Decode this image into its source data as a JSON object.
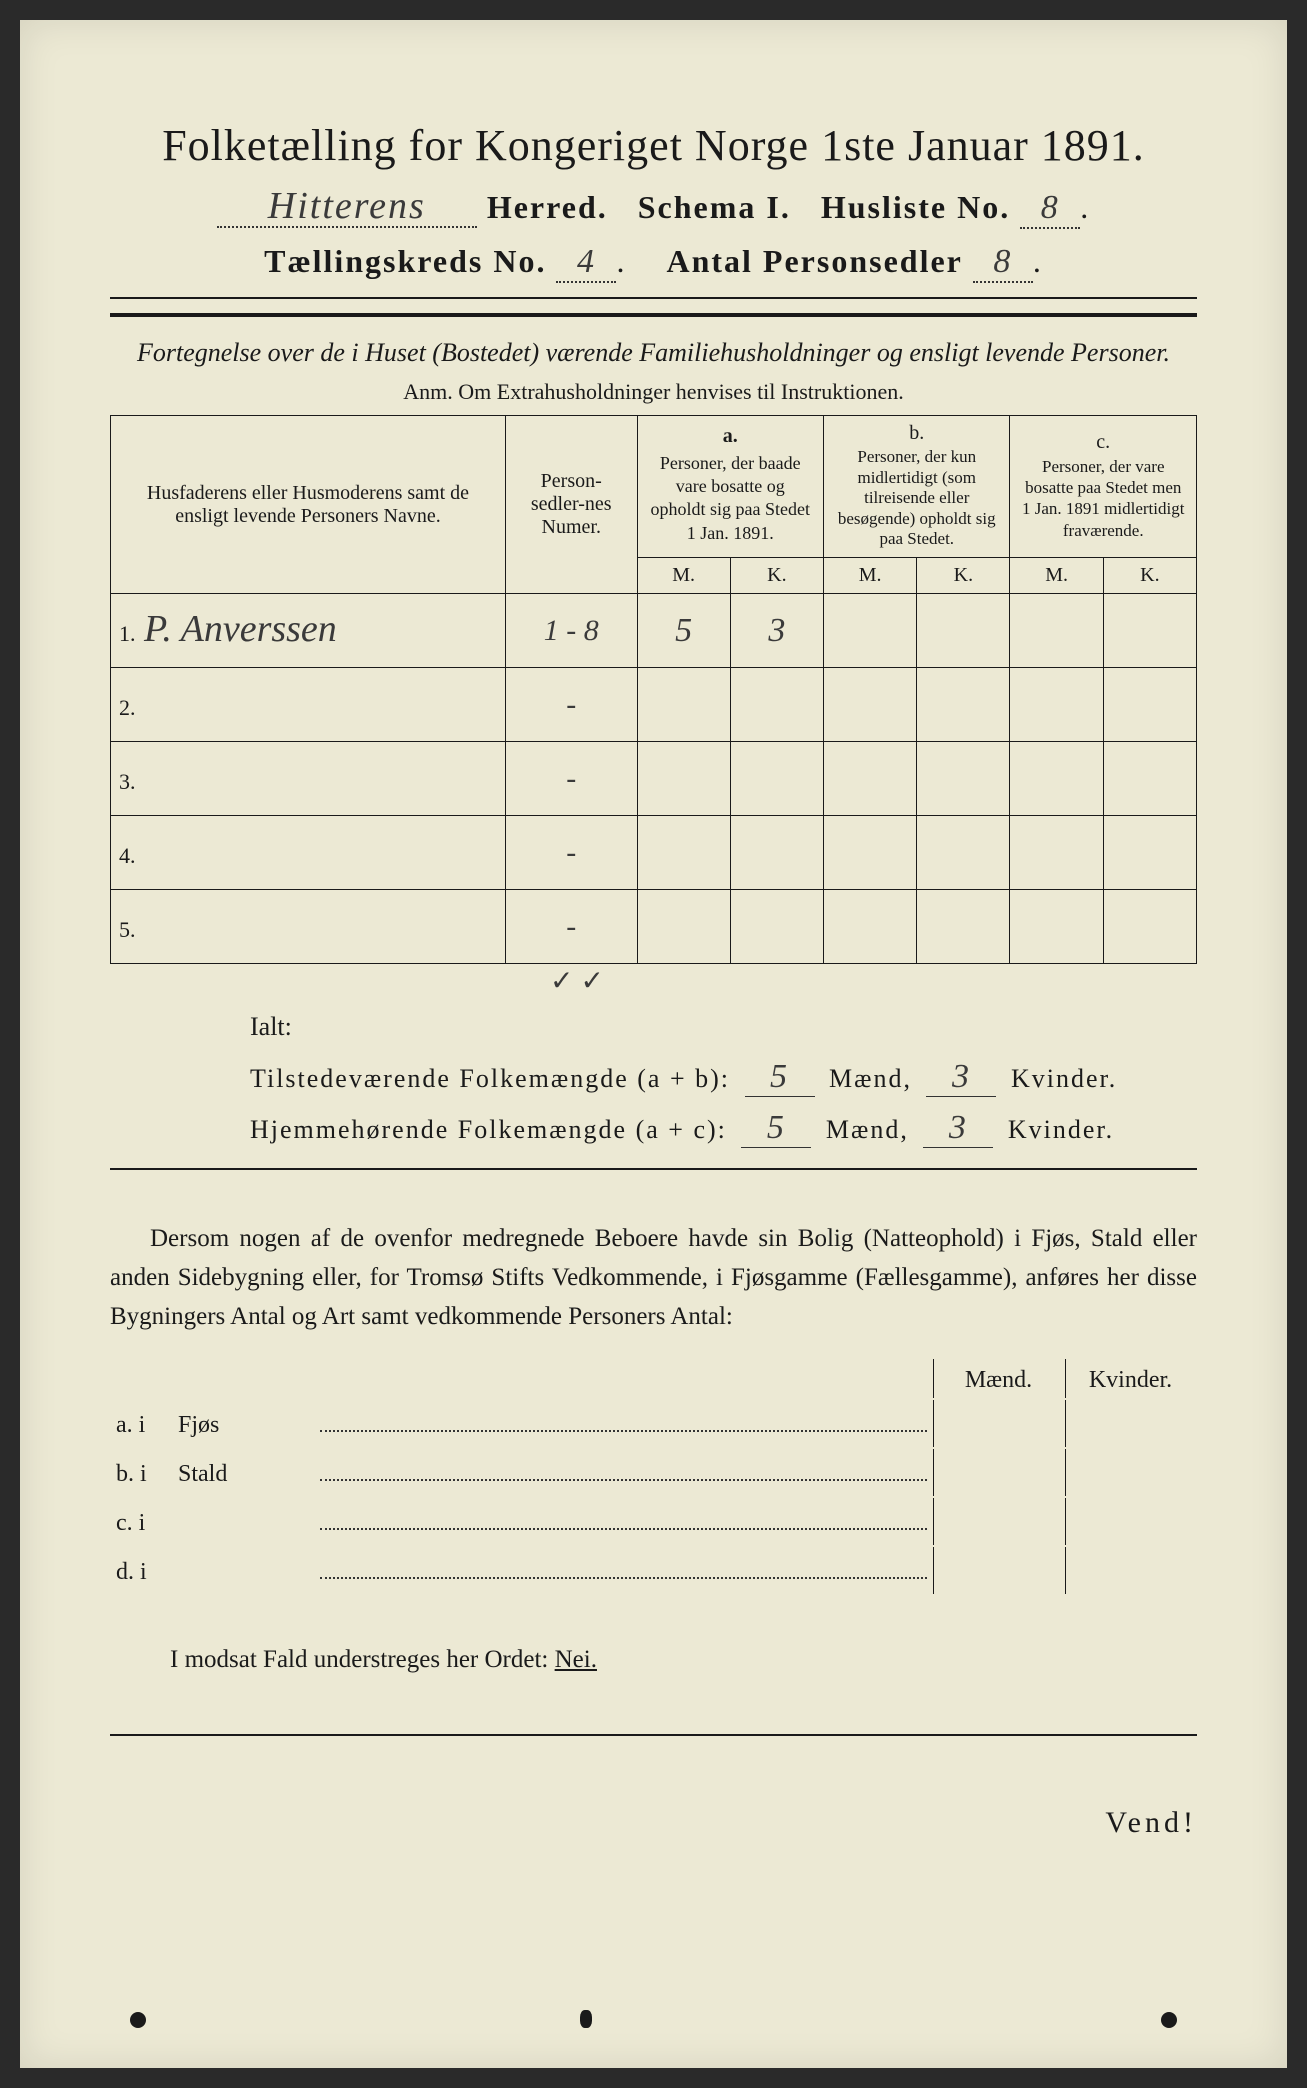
{
  "header": {
    "title": "Folketælling for Kongeriget Norge 1ste Januar 1891.",
    "herred_handwritten": "Hitterens",
    "herred_label": "Herred.",
    "schema_label": "Schema I.",
    "husliste_label": "Husliste No.",
    "husliste_no": "8",
    "kreds_label": "Tællingskreds No.",
    "kreds_no": "4",
    "antal_label": "Antal Personsedler",
    "antal_no": "8"
  },
  "intro": {
    "line1": "Fortegnelse over de i Huset (Bostedet) værende Familiehusholdninger og ensligt levende Personer.",
    "anm": "Anm. Om Extrahusholdninger henvises til Instruktionen."
  },
  "table": {
    "col_name": "Husfaderens eller Husmoderens samt de ensligt levende Personers Navne.",
    "col_num": "Person-sedler-nes Numer.",
    "col_a_head": "a.",
    "col_a": "Personer, der baade vare bosatte og opholdt sig paa Stedet 1 Jan. 1891.",
    "col_b_head": "b.",
    "col_b": "Personer, der kun midlertidigt (som tilreisende eller besøgende) opholdt sig paa Stedet.",
    "col_c_head": "c.",
    "col_c": "Personer, der vare bosatte paa Stedet men 1 Jan. 1891 midlertidigt fraværende.",
    "mk_m": "M.",
    "mk_k": "K.",
    "rows": [
      {
        "n": "1.",
        "name": "P. Anverssen",
        "num": "1 - 8",
        "am": "5",
        "ak": "3",
        "bm": "",
        "bk": "",
        "cm": "",
        "ck": ""
      },
      {
        "n": "2.",
        "name": "",
        "num": "-",
        "am": "",
        "ak": "",
        "bm": "",
        "bk": "",
        "cm": "",
        "ck": ""
      },
      {
        "n": "3.",
        "name": "",
        "num": "-",
        "am": "",
        "ak": "",
        "bm": "",
        "bk": "",
        "cm": "",
        "ck": ""
      },
      {
        "n": "4.",
        "name": "",
        "num": "-",
        "am": "",
        "ak": "",
        "bm": "",
        "bk": "",
        "cm": "",
        "ck": ""
      },
      {
        "n": "5.",
        "name": "",
        "num": "-",
        "am": "",
        "ak": "",
        "bm": "",
        "bk": "",
        "cm": "",
        "ck": ""
      }
    ],
    "checks": "✓   ✓"
  },
  "ialt": {
    "title": "Ialt:",
    "line1_a": "Tilstedeværende Folkemængde (a + b):",
    "line2_a": "Hjemmehørende Folkemængde (a + c):",
    "maend": "Mænd,",
    "kvinder": "Kvinder.",
    "v1m": "5",
    "v1k": "3",
    "v2m": "5",
    "v2k": "3"
  },
  "para": "Dersom nogen af de ovenfor medregnede Beboere havde sin Bolig (Natteophold) i Fjøs, Stald eller anden Sidebygning eller, for Tromsø Stifts Vedkommende, i Fjøsgamme (Fællesgamme), anføres her disse Bygningers Antal og Art samt vedkommende Personers Antal:",
  "sub": {
    "maend": "Mænd.",
    "kvinder": "Kvinder.",
    "rows": [
      {
        "label": "a.  i",
        "type": "Fjøs"
      },
      {
        "label": "b.  i",
        "type": "Stald"
      },
      {
        "label": "c.  i",
        "type": ""
      },
      {
        "label": "d.  i",
        "type": ""
      }
    ]
  },
  "modsat": {
    "pre": "I modsat Fald understreges her Ordet:",
    "nei": "Nei."
  },
  "vend": "Vend!",
  "colors": {
    "paper": "#ece9d4",
    "ink": "#1a1a1a",
    "handwriting": "#3a3a3a",
    "background": "#2a2a2a"
  }
}
